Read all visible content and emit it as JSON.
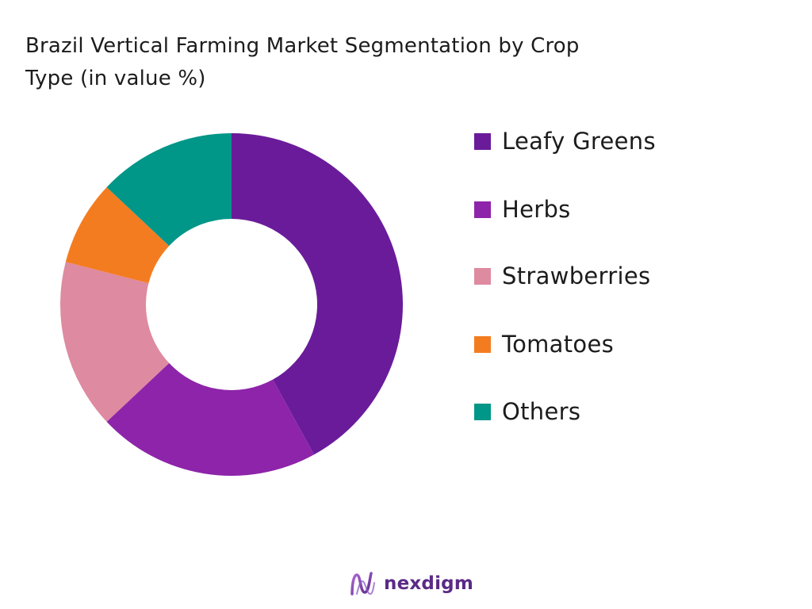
{
  "chart_data": {
    "type": "pie",
    "variant": "donut",
    "title_line1": "Brazil Vertical Farming Market Segmentation by Crop",
    "title_line2": "Type (in value %)",
    "categories": [
      "Leafy Greens",
      "Herbs",
      "Strawberries",
      "Tomatoes",
      "Others"
    ],
    "values": [
      42,
      21,
      16,
      8,
      13
    ],
    "colors": [
      "#6a1b9a",
      "#8e24aa",
      "#de8aa0",
      "#f47c20",
      "#009688"
    ],
    "legend_position": "right"
  },
  "brand": {
    "name": "nexdigm",
    "color": "#5b2a86"
  }
}
